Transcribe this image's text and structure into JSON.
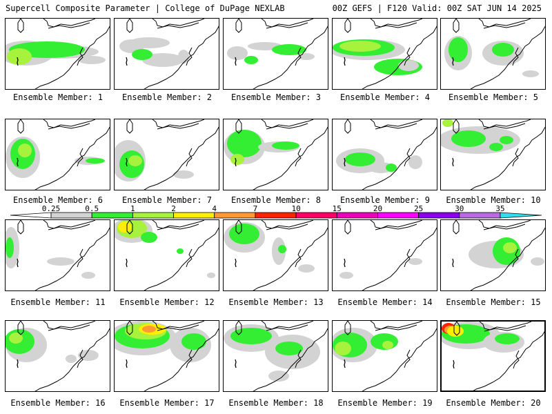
{
  "header": {
    "title": "Supercell Composite Parameter | College of DuPage NEXLAB",
    "run_info": "00Z GEFS | F120 Valid: 00Z SAT JUN 14 2025"
  },
  "colorbar": {
    "levels": [
      "0.25",
      "0.5",
      "1",
      "2",
      "4",
      "7",
      "10",
      "15",
      "20",
      "25",
      "30",
      "35"
    ],
    "colors": [
      "#d3d3d3",
      "#33ee33",
      "#a6f23c",
      "#ffee00",
      "#ff9933",
      "#ff2200",
      "#ff0066",
      "#ee00bb",
      "#ff00ff",
      "#8800ee",
      "#b86ae0",
      "#33ddee"
    ]
  },
  "members": [
    {
      "label": "Ensemble Member: 1"
    },
    {
      "label": "Ensemble Member: 2"
    },
    {
      "label": "Ensemble Member: 3"
    },
    {
      "label": "Ensemble Member: 4"
    },
    {
      "label": "Ensemble Member: 5"
    },
    {
      "label": "Ensemble Member: 6"
    },
    {
      "label": "Ensemble Member: 7"
    },
    {
      "label": "Ensemble Member: 8"
    },
    {
      "label": "Ensemble Member: 9"
    },
    {
      "label": "Ensemble Member: 10"
    },
    {
      "label": "Ensemble Member: 11"
    },
    {
      "label": "Ensemble Member: 12"
    },
    {
      "label": "Ensemble Member: 13"
    },
    {
      "label": "Ensemble Member: 14"
    },
    {
      "label": "Ensemble Member: 15"
    },
    {
      "label": "Ensemble Member: 16"
    },
    {
      "label": "Ensemble Member: 17"
    },
    {
      "label": "Ensemble Member: 18"
    },
    {
      "label": "Ensemble Member: 19"
    },
    {
      "label": "Ensemble Member: 20"
    }
  ]
}
